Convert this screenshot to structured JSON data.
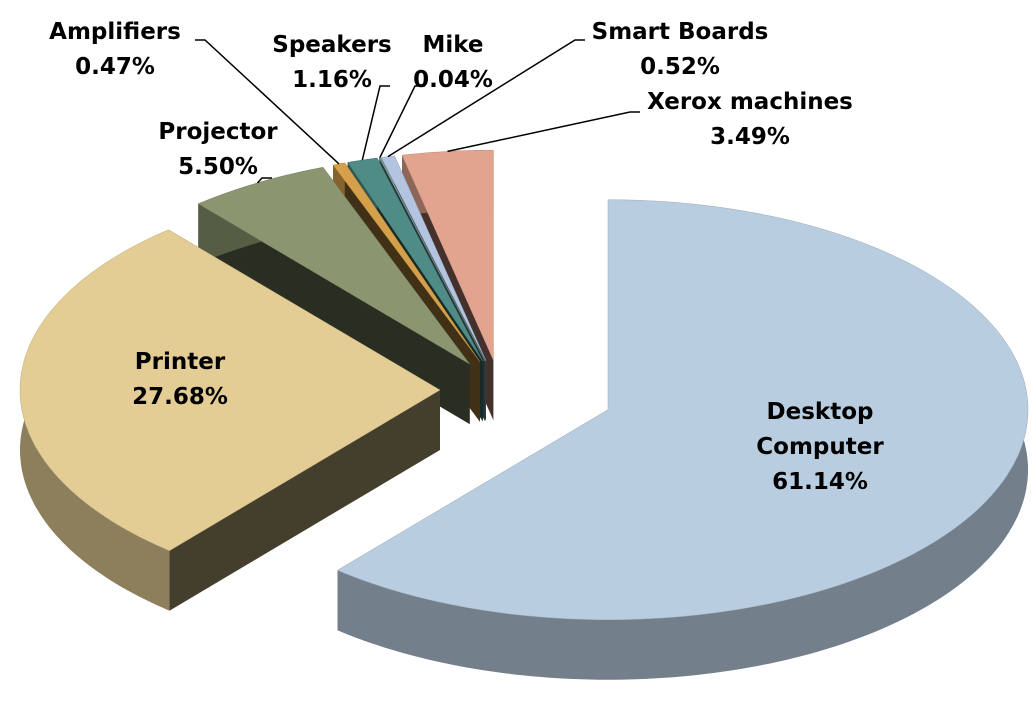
{
  "chart_data": {
    "type": "pie3d",
    "categories": [
      "Desktop Computer",
      "Printer",
      "Projector",
      "Amplifiers",
      "Speakers",
      "Mike",
      "Smart Boards",
      "Xerox machines"
    ],
    "values": [
      61.14,
      27.68,
      5.5,
      0.47,
      1.16,
      0.04,
      0.52,
      3.49
    ],
    "value_labels": [
      "61.14%",
      "27.68%",
      "5.50%",
      "0.47%",
      "1.16%",
      "0.04%",
      "0.52%",
      "3.49%"
    ],
    "colors": [
      "#b9cde0",
      "#e3cd95",
      "#8b9670",
      "#d6a04a",
      "#4f8c86",
      "#7ea8a5",
      "#b2c4e0",
      "#e3a48f"
    ]
  }
}
